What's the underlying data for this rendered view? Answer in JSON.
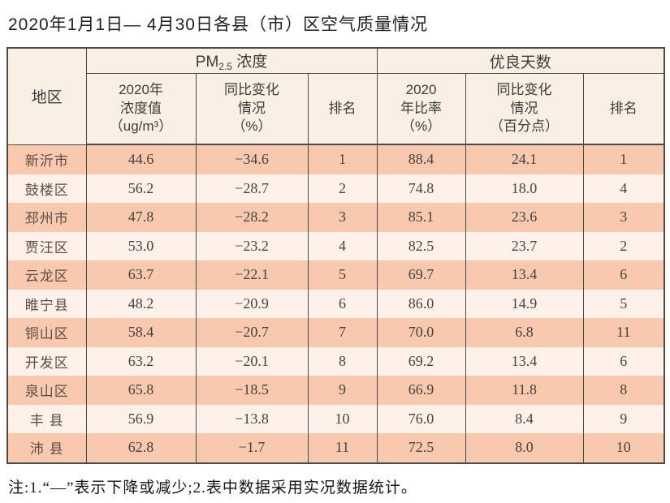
{
  "title": "2020年1月1日— 4月30日各县（市）区空气质量情况",
  "chart_data": {
    "type": "table",
    "title": "2020年1月1日— 4月30日各县（市）区空气质量情况",
    "header": {
      "region": "地区",
      "pm_group": {
        "prefix": "PM",
        "sub": "2.5",
        "suffix": " 浓度"
      },
      "good_days_group": "优良天数",
      "sub_headers": [
        "2020年\n浓度值\n（ug/m³）",
        "同比变化\n情况\n（%）",
        "排名",
        "2020\n年比率\n（%）",
        "同比变化\n情况\n（百分点）",
        "排名"
      ]
    },
    "rows": [
      [
        "新沂市",
        "44.6",
        "−34.6",
        "1",
        "88.4",
        "24.1",
        "1"
      ],
      [
        "鼓楼区",
        "56.2",
        "−28.7",
        "2",
        "74.8",
        "18.0",
        "4"
      ],
      [
        "邳州市",
        "47.8",
        "−28.2",
        "3",
        "85.1",
        "23.6",
        "3"
      ],
      [
        "贾汪区",
        "53.0",
        "−23.2",
        "4",
        "82.5",
        "23.7",
        "2"
      ],
      [
        "云龙区",
        "63.7",
        "−22.1",
        "5",
        "69.7",
        "13.4",
        "6"
      ],
      [
        "睢宁县",
        "48.2",
        "−20.9",
        "6",
        "86.0",
        "14.9",
        "5"
      ],
      [
        "铜山区",
        "58.4",
        "−20.7",
        "7",
        "70.0",
        "6.8",
        "11"
      ],
      [
        "开发区",
        "63.2",
        "−20.1",
        "8",
        "69.2",
        "13.4",
        "6"
      ],
      [
        "泉山区",
        "65.8",
        "−18.5",
        "9",
        "66.9",
        "11.8",
        "8"
      ],
      [
        "丰 县",
        "56.9",
        "−13.8",
        "10",
        "76.0",
        "8.4",
        "9"
      ],
      [
        "沛 县",
        "62.8",
        "−1.7",
        "11",
        "72.5",
        "8.0",
        "10"
      ]
    ]
  },
  "note": "注:1.“—”表示下降或减少;2.表中数据采用实况数据统计。",
  "colors": {
    "row_salmon": "#f8c9ae",
    "row_light": "#fdf1e9",
    "header_bg": "#f9efe3",
    "border": "#4a4a4a"
  }
}
